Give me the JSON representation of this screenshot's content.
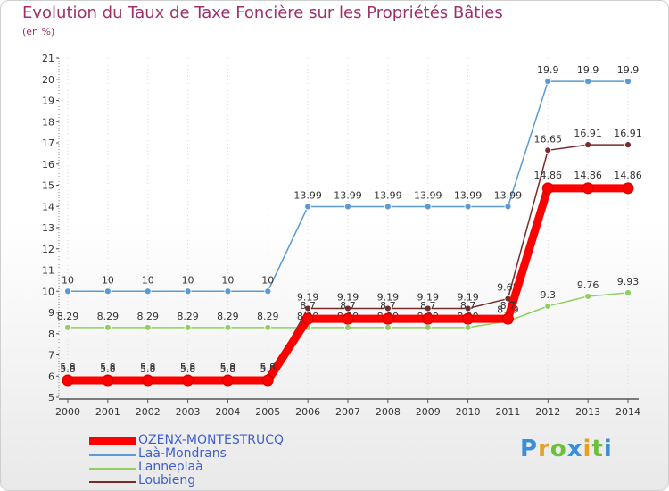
{
  "chart_data": {
    "type": "line",
    "title": "Evolution du Taux de Taxe Foncière sur les Propriétés Bâties",
    "ylabel": "(en %)",
    "xlabel": "",
    "ylim": [
      5,
      21
    ],
    "yticks": [
      5,
      6,
      7,
      8,
      9,
      10,
      11,
      12,
      13,
      14,
      15,
      16,
      17,
      18,
      19,
      20,
      21
    ],
    "categories": [
      "2000",
      "2001",
      "2002",
      "2003",
      "2004",
      "2005",
      "2006",
      "2007",
      "2008",
      "2009",
      "2010",
      "2011",
      "2012",
      "2013",
      "2014"
    ],
    "series": [
      {
        "name": "Laà-Mondrans",
        "color": "#5b9bd5",
        "values": [
          10,
          10,
          10,
          10,
          10,
          10,
          13.99,
          13.99,
          13.99,
          13.99,
          13.99,
          13.99,
          19.9,
          19.9,
          19.9
        ],
        "labels": [
          "10",
          "10",
          "10",
          "10",
          "10",
          "10",
          "13.99",
          "13.99",
          "13.99",
          "13.99",
          "13.99",
          "13.99",
          "19.9",
          "19.9",
          "19.9"
        ]
      },
      {
        "name": "Lanneplaà",
        "color": "#90d060",
        "values": [
          8.29,
          8.29,
          8.29,
          8.29,
          8.29,
          8.29,
          8.29,
          8.29,
          8.29,
          8.29,
          8.29,
          8.59,
          9.3,
          9.76,
          9.93
        ],
        "labels": [
          "8.29",
          "8.29",
          "8.29",
          "8.29",
          "8.29",
          "8.29",
          "8.29",
          "8.29",
          "8.29",
          "8.29",
          "8.29",
          "8.59",
          "9.3",
          "9.76",
          "9.93"
        ]
      },
      {
        "name": "Loubieng",
        "color": "#7a2a2a",
        "values": [
          5.8,
          5.8,
          5.8,
          5.8,
          5.8,
          5.8,
          9.19,
          9.19,
          9.19,
          9.19,
          9.19,
          9.65,
          16.65,
          16.91,
          16.91
        ],
        "labels": [
          "5.8",
          "5.8",
          "5.8",
          "5.8",
          "5.8",
          "5.8",
          "9.19",
          "9.19",
          "9.19",
          "9.19",
          "9.19",
          "9.65",
          "16.65",
          "16.91",
          "16.91"
        ]
      },
      {
        "name": "OZENX-MONTESTRUCQ",
        "color": "#ff0000",
        "values": [
          5.8,
          5.8,
          5.8,
          5.8,
          5.8,
          5.8,
          8.7,
          8.7,
          8.7,
          8.7,
          8.7,
          8.7,
          14.86,
          14.86,
          14.86
        ],
        "labels": [
          "5.8",
          "5.8",
          "5.8",
          "5.8",
          "5.8",
          "5.8",
          "8.7",
          "8.7",
          "8.7",
          "8.7",
          "8.7",
          "8.7",
          "14.86",
          "14.86",
          "14.86"
        ]
      }
    ],
    "legend": [
      {
        "name": "OZENX-MONTESTRUCQ",
        "color": "#ff0000"
      },
      {
        "name": "Laà-Mondrans",
        "color": "#5b9bd5"
      },
      {
        "name": "Lanneplaà",
        "color": "#90d060"
      },
      {
        "name": "Loubieng",
        "color": "#7a2a2a"
      }
    ],
    "legend_position": "bottom-left"
  },
  "logo": {
    "text": "Proxiti",
    "letters": [
      {
        "ch": "P",
        "color": "#3a8fd8"
      },
      {
        "ch": "r",
        "color": "#e8a020"
      },
      {
        "ch": "o",
        "color": "#6bbf3a"
      },
      {
        "ch": "x",
        "color": "#3a8fd8"
      },
      {
        "ch": "i",
        "color": "#e8a020"
      },
      {
        "ch": "t",
        "color": "#6bbf3a"
      },
      {
        "ch": "i",
        "color": "#3a8fd8"
      }
    ]
  }
}
